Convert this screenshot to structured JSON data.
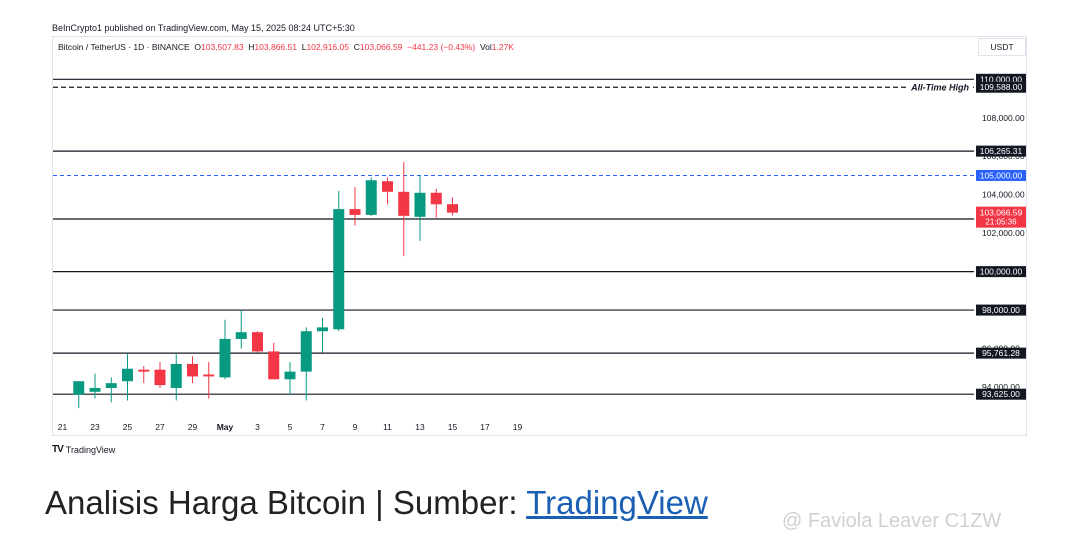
{
  "header": {
    "published": "BeInCrypto1 published on TradingView.com, May 15, 2025 08:24 UTC+5:30",
    "symbol": "Bitcoin / TetherUS · 1D · BINANCE",
    "open_label": "O",
    "open": "103,507.83",
    "high_label": "H",
    "high": "103,866.51",
    "low_label": "L",
    "low": "102,916.05",
    "close_label": "C",
    "close": "103,066.59",
    "change": "−441.23 (−0.43%)",
    "volume_label": "Vol",
    "volume": "1.27K",
    "currency": "USDT"
  },
  "footer": {
    "logo_mark": "TV",
    "logo_text": "TradingView"
  },
  "caption": {
    "text": "Analisis Harga Bitcoin | Sumber: ",
    "link": "TradingView"
  },
  "watermark": "@ Faviola Leaver C1ZW",
  "colors": {
    "up": "#089981",
    "down": "#f23645",
    "line": "#131722",
    "blue": "#2962ff"
  },
  "chart_data": {
    "type": "candlestick",
    "title": "Bitcoin / TetherUS · 1D · BINANCE",
    "ylim": [
      92700,
      110900
    ],
    "y_ticks": [
      94000,
      96000,
      98000,
      100000,
      102000,
      104000,
      106000,
      108000,
      110000
    ],
    "x_ticks": [
      {
        "day": 21,
        "label": "21"
      },
      {
        "day": 23,
        "label": "23"
      },
      {
        "day": 25,
        "label": "25"
      },
      {
        "day": 27,
        "label": "27"
      },
      {
        "day": 29,
        "label": "29"
      },
      {
        "day": 31,
        "label": "May"
      },
      {
        "day": 33,
        "label": "3"
      },
      {
        "day": 35,
        "label": "5"
      },
      {
        "day": 37,
        "label": "7"
      },
      {
        "day": 39,
        "label": "9"
      },
      {
        "day": 41,
        "label": "11"
      },
      {
        "day": 43,
        "label": "13"
      },
      {
        "day": 45,
        "label": "15"
      },
      {
        "day": 47,
        "label": "17"
      },
      {
        "day": 49,
        "label": "19"
      }
    ],
    "candles": [
      {
        "day": 22,
        "o": 93600,
        "h": 94300,
        "l": 92900,
        "c": 94300
      },
      {
        "day": 23,
        "o": 93750,
        "h": 94700,
        "l": 93400,
        "c": 93950
      },
      {
        "day": 24,
        "o": 93950,
        "h": 94500,
        "l": 93200,
        "c": 94200
      },
      {
        "day": 25,
        "o": 94300,
        "h": 95700,
        "l": 93300,
        "c": 94950
      },
      {
        "day": 26,
        "o": 94900,
        "h": 95100,
        "l": 94200,
        "c": 94800
      },
      {
        "day": 27,
        "o": 94900,
        "h": 95300,
        "l": 93950,
        "c": 94100
      },
      {
        "day": 28,
        "o": 93950,
        "h": 95700,
        "l": 93300,
        "c": 95200
      },
      {
        "day": 29,
        "o": 95200,
        "h": 95600,
        "l": 94200,
        "c": 94550
      },
      {
        "day": 30,
        "o": 94650,
        "h": 95300,
        "l": 93400,
        "c": 94550
      },
      {
        "day": 31,
        "o": 94500,
        "h": 97500,
        "l": 94400,
        "c": 96500
      },
      {
        "day": 32,
        "o": 96500,
        "h": 98000,
        "l": 96000,
        "c": 96850
      },
      {
        "day": 33,
        "o": 96850,
        "h": 96900,
        "l": 95800,
        "c": 95850
      },
      {
        "day": 34,
        "o": 95850,
        "h": 96300,
        "l": 94400,
        "c": 94400
      },
      {
        "day": 35,
        "o": 94400,
        "h": 95300,
        "l": 93600,
        "c": 94800
      },
      {
        "day": 36,
        "o": 94800,
        "h": 97100,
        "l": 93300,
        "c": 96900
      },
      {
        "day": 37,
        "o": 96900,
        "h": 97600,
        "l": 95800,
        "c": 97100
      },
      {
        "day": 38,
        "o": 97000,
        "h": 104200,
        "l": 96900,
        "c": 103250
      },
      {
        "day": 39,
        "o": 103250,
        "h": 104400,
        "l": 102400,
        "c": 102950
      },
      {
        "day": 40,
        "o": 102950,
        "h": 104900,
        "l": 102900,
        "c": 104750
      },
      {
        "day": 41,
        "o": 104700,
        "h": 104900,
        "l": 103500,
        "c": 104150
      },
      {
        "day": 42,
        "o": 104150,
        "h": 105700,
        "l": 100800,
        "c": 102900
      },
      {
        "day": 43,
        "o": 102850,
        "h": 105000,
        "l": 101600,
        "c": 104100
      },
      {
        "day": 44,
        "o": 104100,
        "h": 104300,
        "l": 102800,
        "c": 103500
      },
      {
        "day": 45,
        "o": 103507.83,
        "h": 103866.51,
        "l": 102916.05,
        "c": 103066.59
      }
    ],
    "levels": [
      {
        "value": 110000,
        "label": "110,000.00",
        "style": "solid"
      },
      {
        "value": 109588,
        "label": "109,588.00",
        "style": "dashed",
        "note": "All-Time High"
      },
      {
        "value": 106265.31,
        "label": "106,265.31",
        "style": "solid"
      },
      {
        "value": 105000,
        "label": "105,000.00",
        "style": "dashed-blue"
      },
      {
        "value": 102734.23,
        "label": "102,734.23",
        "style": "solid"
      },
      {
        "value": 100000,
        "label": "100,000.00",
        "style": "solid"
      },
      {
        "value": 98000,
        "label": "98,000.00",
        "style": "solid"
      },
      {
        "value": 95761.28,
        "label": "95,761.28",
        "style": "solid"
      },
      {
        "value": 93625,
        "label": "93,625.00",
        "style": "solid"
      }
    ],
    "current_price": {
      "value": 103066.59,
      "label": "103,066.59",
      "countdown": "21:05:36"
    },
    "grid": false
  }
}
